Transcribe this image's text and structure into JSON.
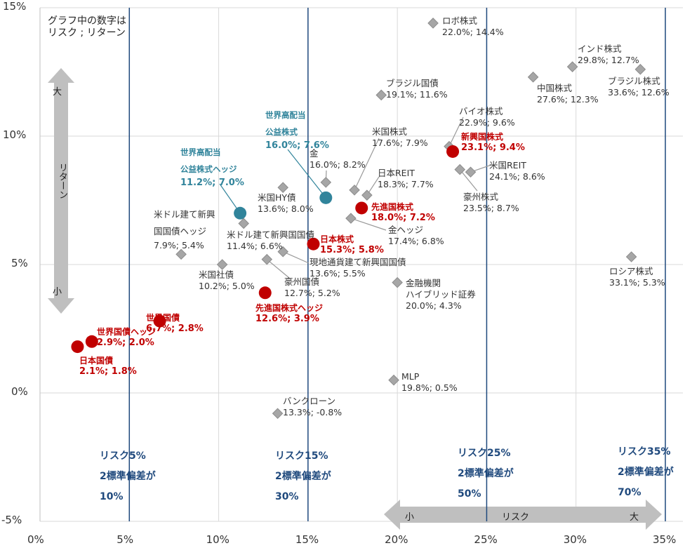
{
  "chart_data": {
    "type": "scatter",
    "xlabel": "",
    "ylabel": "",
    "xlim": [
      0,
      35
    ],
    "ylim": [
      -5,
      15
    ],
    "x_ticks": [
      "0%",
      "5%",
      "10%",
      "15%",
      "20%",
      "25%",
      "30%",
      "35%"
    ],
    "y_ticks": [
      "-5%",
      "0%",
      "5%",
      "10%",
      "15%"
    ],
    "grid": true,
    "note": [
      "グラフ中の数字は",
      "リスク ; リターン"
    ],
    "colors": {
      "gray": "#999999",
      "red": "#c00000",
      "teal": "#31849b",
      "risk_line": "#1f497d"
    },
    "points": [
      {
        "name": "ロボ株式",
        "risk": 22.0,
        "return": 14.4,
        "value": "22.0%; 14.4%",
        "group": "gray"
      },
      {
        "name": "インド株式",
        "risk": 29.8,
        "return": 12.7,
        "value": "29.8%; 12.7%",
        "group": "gray"
      },
      {
        "name": "中国株式",
        "risk": 27.6,
        "return": 12.3,
        "value": "27.6%; 12.3%",
        "group": "gray"
      },
      {
        "name": "ブラジル株式",
        "risk": 33.6,
        "return": 12.6,
        "value": "33.6%; 12.6%",
        "group": "gray"
      },
      {
        "name": "ブラジル国債",
        "risk": 19.1,
        "return": 11.6,
        "value": "19.1%; 11.6%",
        "group": "gray"
      },
      {
        "name": "バイオ株式",
        "risk": 22.9,
        "return": 9.6,
        "value": "22.9%; 9.6%",
        "group": "gray"
      },
      {
        "name": "米国株式",
        "risk": 17.6,
        "return": 7.9,
        "value": "17.6%; 7.9%",
        "group": "gray"
      },
      {
        "name": "金",
        "risk": 16.0,
        "return": 8.2,
        "value": "16.0%; 8.2%",
        "group": "gray"
      },
      {
        "name": "日本REIT",
        "risk": 18.3,
        "return": 7.7,
        "value": "18.3%; 7.7%",
        "group": "gray"
      },
      {
        "name": "米国REIT",
        "risk": 24.1,
        "return": 8.6,
        "value": "24.1%; 8.6%",
        "group": "gray"
      },
      {
        "name": "豪州株式",
        "risk": 23.5,
        "return": 8.7,
        "value": "23.5%; 8.7%",
        "group": "gray"
      },
      {
        "name": "米国HY債",
        "risk": 13.6,
        "return": 8.0,
        "value": "13.6%; 8.0%",
        "group": "gray"
      },
      {
        "name": "米ドル建て新興|国国債ヘッジ",
        "risk": 7.9,
        "return": 5.4,
        "value": "7.9%; 5.4%",
        "group": "gray"
      },
      {
        "name": "米ドル建て新興国国債",
        "risk": 11.4,
        "return": 6.6,
        "value": "11.4%; 6.6%",
        "group": "gray"
      },
      {
        "name": "金ヘッジ",
        "risk": 17.4,
        "return": 6.8,
        "value": "17.4%; 6.8%",
        "group": "gray"
      },
      {
        "name": "現地通貨建て新興国国債",
        "risk": 13.6,
        "return": 5.5,
        "value": "13.6%; 5.5%",
        "group": "gray"
      },
      {
        "name": "米国社債",
        "risk": 10.2,
        "return": 5.0,
        "value": "10.2%; 5.0%",
        "group": "gray"
      },
      {
        "name": "豪州国債",
        "risk": 12.7,
        "return": 5.2,
        "value": "12.7%; 5.2%",
        "group": "gray"
      },
      {
        "name": "金融機関|ハイブリッド証券",
        "risk": 20.0,
        "return": 4.3,
        "value": "20.0%; 4.3%",
        "group": "gray"
      },
      {
        "name": "ロシア株式",
        "risk": 33.1,
        "return": 5.3,
        "value": "33.1%; 5.3%",
        "group": "gray"
      },
      {
        "name": "MLP",
        "risk": 19.8,
        "return": 0.5,
        "value": "19.8%; 0.5%",
        "group": "gray"
      },
      {
        "name": "バンクローン",
        "risk": 13.3,
        "return": -0.8,
        "value": "13.3%; -0.8%",
        "group": "gray"
      },
      {
        "name": "日本国債",
        "risk": 2.1,
        "return": 1.8,
        "value": "2.1%; 1.8%",
        "group": "red"
      },
      {
        "name": "世界国債ヘッジ",
        "risk": 2.9,
        "return": 2.0,
        "value": "2.9%; 2.0%",
        "group": "red"
      },
      {
        "name": "世界国債",
        "risk": 6.7,
        "return": 2.8,
        "value": "6.7%; 2.8%",
        "group": "red"
      },
      {
        "name": "先進国株式ヘッジ",
        "risk": 12.6,
        "return": 3.9,
        "value": "12.6%; 3.9%",
        "group": "red"
      },
      {
        "name": "日本株式",
        "risk": 15.3,
        "return": 5.8,
        "value": "15.3%; 5.8%",
        "group": "red"
      },
      {
        "name": "先進国株式",
        "risk": 18.0,
        "return": 7.2,
        "value": "18.0%; 7.2%",
        "group": "red"
      },
      {
        "name": "新興国株式",
        "risk": 23.1,
        "return": 9.4,
        "value": "23.1%; 9.4%",
        "group": "red"
      },
      {
        "name": "世界高配当|公益株式ヘッジ",
        "risk": 11.2,
        "return": 7.0,
        "value": "11.2%; 7.0%",
        "group": "teal"
      },
      {
        "name": "世界高配当|公益株式",
        "risk": 16.0,
        "return": 7.6,
        "value": "16.0%; 7.6%",
        "group": "teal"
      }
    ],
    "risk_lines": [
      {
        "risk": 5,
        "label": "リスク5%",
        "sub": "2標準偏差が",
        "pct": "10%"
      },
      {
        "risk": 15,
        "label": "リスク15%",
        "sub": "2標準偏差が",
        "pct": "30%"
      },
      {
        "risk": 25,
        "label": "リスク25%",
        "sub": "2標準偏差が",
        "pct": "50%"
      },
      {
        "risk": 35,
        "label": "リスク35%",
        "sub": "2標準偏差が",
        "pct": "70%"
      }
    ],
    "y_arrow": {
      "top": "大",
      "mid": "リターン",
      "bottom": "小"
    },
    "x_arrow": {
      "left": "小",
      "mid": "リスク",
      "right": "大"
    }
  }
}
